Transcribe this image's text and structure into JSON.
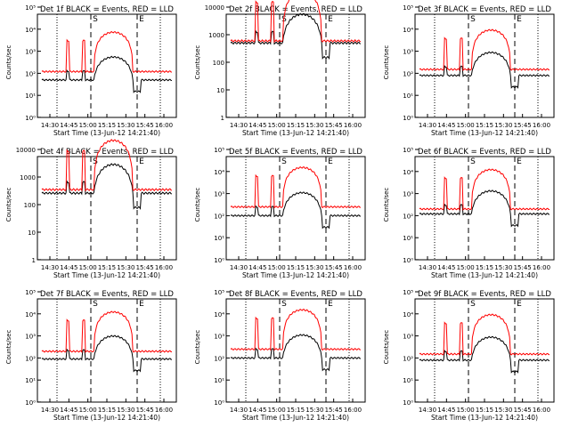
{
  "chart_data": [
    {
      "type": "line",
      "title": "Det 1f BLACK = Events, RED = LLD",
      "xlabel": "Start Time (13-Jun-12 14:21:40)",
      "ylabel": "Counts/sec",
      "yscale": "log",
      "ylim": [
        1,
        100000
      ],
      "yticks": [
        "10⁰",
        "10¹",
        "10²",
        "10³",
        "10⁴",
        "10⁵"
      ],
      "xticks": [
        "14:30",
        "14:45",
        "15:00",
        "15:15",
        "15:30",
        "15:45",
        "16:00"
      ],
      "markers": [
        "S",
        "E"
      ],
      "series": [
        {
          "color": "#000000",
          "x": [
            0,
            14
          ],
          "y": [
            50,
            50
          ]
        },
        {
          "color": "#ff0000",
          "x": [
            0,
            14
          ],
          "y": [
            120,
            120
          ]
        }
      ]
    },
    {
      "type": "line",
      "title": "Det 2f BLACK = Events, RED = LLD",
      "xlabel": "Start Time (13-Jun-12 14:21:40)",
      "ylabel": "Counts/sec",
      "yscale": "log",
      "ylim": [
        1,
        10000
      ],
      "yticks": [
        "1",
        "10",
        "100",
        "1000",
        "10000"
      ],
      "xticks": [
        "14:30",
        "14:45",
        "15:00",
        "15:15",
        "15:30",
        "15:45",
        "16:00"
      ],
      "markers": [
        "S",
        "E"
      ],
      "series": [
        {
          "color": "#000000",
          "x": [
            0,
            14
          ],
          "y": [
            500,
            500
          ]
        },
        {
          "color": "#ff0000",
          "x": [
            0,
            14
          ],
          "y": [
            600,
            600
          ]
        }
      ]
    },
    {
      "type": "line",
      "title": "Det 3f BLACK = Events, RED = LLD",
      "xlabel": "Start Time (13-Jun-12 14:21:40)",
      "ylabel": "Counts/sec",
      "yscale": "log",
      "ylim": [
        1,
        100000
      ],
      "yticks": [
        "10⁰",
        "10¹",
        "10²",
        "10³",
        "10⁴",
        "10⁵"
      ],
      "xticks": [
        "14:30",
        "14:45",
        "15:00",
        "15:15",
        "15:30",
        "15:45",
        "16:00"
      ],
      "markers": [
        "S",
        "E"
      ],
      "series": [
        {
          "color": "#000000",
          "x": [
            0,
            14
          ],
          "y": [
            80,
            80
          ]
        },
        {
          "color": "#ff0000",
          "x": [
            0,
            14
          ],
          "y": [
            150,
            150
          ]
        }
      ]
    },
    {
      "type": "line",
      "title": "Det 4f BLACK = Events, RED = LLD",
      "xlabel": "Start Time (13-Jun-12 14:21:40)",
      "ylabel": "Counts/sec",
      "yscale": "log",
      "ylim": [
        1,
        10000
      ],
      "yticks": [
        "1",
        "10",
        "100",
        "1000",
        "10000"
      ],
      "xticks": [
        "14:30",
        "14:45",
        "15:00",
        "15:15",
        "15:30",
        "15:45",
        "16:00"
      ],
      "markers": [
        "S",
        "E"
      ],
      "series": [
        {
          "color": "#000000",
          "x": [
            0,
            14
          ],
          "y": [
            260,
            260
          ]
        },
        {
          "color": "#ff0000",
          "x": [
            0,
            14
          ],
          "y": [
            350,
            350
          ]
        }
      ]
    },
    {
      "type": "line",
      "title": "Det 5f BLACK = Events, RED = LLD",
      "xlabel": "Start Time (13-Jun-12 14:21:40)",
      "ylabel": "Counts/sec",
      "yscale": "log",
      "ylim": [
        1,
        100000
      ],
      "yticks": [
        "10⁰",
        "10¹",
        "10²",
        "10³",
        "10⁴",
        "10⁵"
      ],
      "xticks": [
        "14:30",
        "14:45",
        "15:00",
        "15:15",
        "15:30",
        "15:45",
        "16:00"
      ],
      "markers": [
        "S",
        "E"
      ],
      "series": [
        {
          "color": "#000000",
          "x": [
            0,
            14
          ],
          "y": [
            100,
            100
          ]
        },
        {
          "color": "#ff0000",
          "x": [
            0,
            14
          ],
          "y": [
            250,
            250
          ]
        }
      ]
    },
    {
      "type": "line",
      "title": "Det 6f BLACK = Events, RED = LLD",
      "xlabel": "Start Time (13-Jun-12 14:21:40)",
      "ylabel": "Counts/sec",
      "yscale": "log",
      "ylim": [
        1,
        100000
      ],
      "yticks": [
        "10⁰",
        "10¹",
        "10²",
        "10³",
        "10⁴",
        "10⁵"
      ],
      "xticks": [
        "14:30",
        "14:45",
        "15:00",
        "15:15",
        "15:30",
        "15:45",
        "16:00"
      ],
      "markers": [
        "S",
        "E"
      ],
      "series": [
        {
          "color": "#000000",
          "x": [
            0,
            14
          ],
          "y": [
            120,
            120
          ]
        },
        {
          "color": "#ff0000",
          "x": [
            0,
            14
          ],
          "y": [
            200,
            200
          ]
        }
      ]
    },
    {
      "type": "line",
      "title": "Det 7f BLACK = Events, RED = LLD",
      "xlabel": "Start Time (13-Jun-12 14:21:40)",
      "ylabel": "Counts/sec",
      "yscale": "log",
      "ylim": [
        1,
        100000
      ],
      "yticks": [
        "10⁰",
        "10¹",
        "10²",
        "10³",
        "10⁴",
        "10⁵"
      ],
      "xticks": [
        "14:30",
        "14:45",
        "15:00",
        "15:15",
        "15:30",
        "15:45",
        "16:00"
      ],
      "markers": [
        "S",
        "E"
      ],
      "series": [
        {
          "color": "#000000",
          "x": [
            0,
            14
          ],
          "y": [
            90,
            90
          ]
        },
        {
          "color": "#ff0000",
          "x": [
            0,
            14
          ],
          "y": [
            200,
            200
          ]
        }
      ]
    },
    {
      "type": "line",
      "title": "Det 8f BLACK = Events, RED = LLD",
      "xlabel": "Start Time (13-Jun-12 14:21:40)",
      "ylabel": "Counts/sec",
      "yscale": "log",
      "ylim": [
        1,
        100000
      ],
      "yticks": [
        "10⁰",
        "10¹",
        "10²",
        "10³",
        "10⁴",
        "10⁵"
      ],
      "xticks": [
        "14:30",
        "14:45",
        "15:00",
        "15:15",
        "15:30",
        "15:45",
        "16:00"
      ],
      "markers": [
        "S",
        "E"
      ],
      "series": [
        {
          "color": "#000000",
          "x": [
            0,
            14
          ],
          "y": [
            100,
            100
          ]
        },
        {
          "color": "#ff0000",
          "x": [
            0,
            14
          ],
          "y": [
            250,
            250
          ]
        }
      ]
    },
    {
      "type": "line",
      "title": "Det 9f BLACK = Events, RED = LLD",
      "xlabel": "Start Time (13-Jun-12 14:21:40)",
      "ylabel": "Counts/sec",
      "yscale": "log",
      "ylim": [
        1,
        100000
      ],
      "yticks": [
        "10⁰",
        "10¹",
        "10²",
        "10³",
        "10⁴",
        "10⁵"
      ],
      "xticks": [
        "14:30",
        "14:45",
        "15:00",
        "15:15",
        "15:30",
        "15:45",
        "16:00"
      ],
      "markers": [
        "S",
        "E"
      ],
      "series": [
        {
          "color": "#000000",
          "x": [
            0,
            14
          ],
          "y": [
            80,
            80
          ]
        },
        {
          "color": "#ff0000",
          "x": [
            0,
            14
          ],
          "y": [
            150,
            150
          ]
        }
      ]
    }
  ]
}
